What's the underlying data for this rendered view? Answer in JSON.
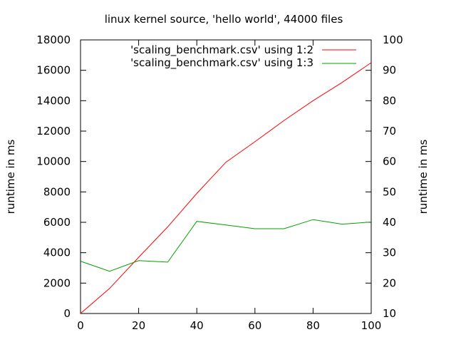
{
  "chart_data": {
    "type": "line",
    "title": "linux kernel source, 'hello world', 44000 files",
    "ylabel": "runtime in ms",
    "y2label": "runtime in ms",
    "xlim": [
      0,
      100
    ],
    "ylim": [
      0,
      18000
    ],
    "y2lim": [
      10,
      100
    ],
    "xticks": [
      0,
      20,
      40,
      60,
      80,
      100
    ],
    "yticks": [
      0,
      2000,
      4000,
      6000,
      8000,
      10000,
      12000,
      14000,
      16000,
      18000
    ],
    "y2ticks": [
      10,
      20,
      30,
      40,
      50,
      60,
      70,
      80,
      90,
      100
    ],
    "grid": false,
    "legend_position": "top-right",
    "series": [
      {
        "name": "'scaling_benchmark.csv' using 1:2",
        "axis": "y",
        "color": "#ff0000",
        "x": [
          0,
          10,
          20,
          30,
          40,
          50,
          60,
          70,
          80,
          90,
          100
        ],
        "values": [
          0,
          1650,
          3700,
          5700,
          7900,
          9950,
          11300,
          12700,
          14000,
          15200,
          16500
        ]
      },
      {
        "name": "'scaling_benchmark.csv' using 1:3",
        "axis": "y2",
        "color": "#00a000",
        "x": [
          0,
          10,
          20,
          30,
          40,
          50,
          60,
          70,
          80,
          90,
          100
        ],
        "values": [
          27.2,
          23.9,
          27.4,
          26.9,
          40.3,
          39.1,
          37.9,
          37.9,
          40.9,
          39.4,
          40.1
        ]
      }
    ]
  }
}
